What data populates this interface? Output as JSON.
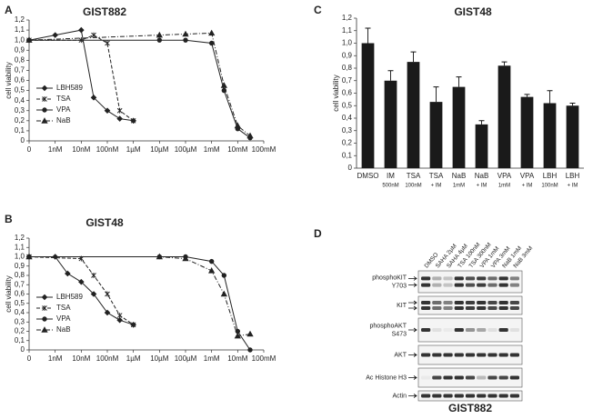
{
  "chart_data": [
    {
      "type": "line",
      "panel": "A",
      "title": "GIST882",
      "ylabel": "cell viability",
      "xlog": true,
      "xlim": [
        0,
        0.1
      ],
      "xticks": [
        {
          "value": 0,
          "label": "0"
        },
        {
          "value": 1e-09,
          "label": "1nM"
        },
        {
          "value": 1e-08,
          "label": "10nM"
        },
        {
          "value": 1e-07,
          "label": "100nM"
        },
        {
          "value": 1e-06,
          "label": "1µM"
        },
        {
          "value": 1e-05,
          "label": "10µM"
        },
        {
          "value": 0.0001,
          "label": "100µM"
        },
        {
          "value": 0.001,
          "label": "1mM"
        },
        {
          "value": 0.01,
          "label": "10mM"
        },
        {
          "value": 0.1,
          "label": "100mM"
        }
      ],
      "ylim": [
        0,
        1.2
      ],
      "yticks": [
        0,
        {
          "value": 0.1,
          "label": "0,1"
        },
        {
          "value": 0.2,
          "label": "0,2"
        },
        {
          "value": 0.3,
          "label": "0,3"
        },
        {
          "value": 0.4,
          "label": "0,4"
        },
        {
          "value": 0.5,
          "label": "0,5"
        },
        {
          "value": 0.6,
          "label": "0,6"
        },
        {
          "value": 0.7,
          "label": "0,7"
        },
        {
          "value": 0.8,
          "label": "0,8"
        },
        {
          "value": 0.9,
          "label": "0,9"
        },
        {
          "value": 1.0,
          "label": "1,0"
        },
        {
          "value": 1.1,
          "label": "1,1"
        },
        {
          "value": 1.2,
          "label": "1,2"
        }
      ],
      "legend": "lower left",
      "series": [
        {
          "name": "LBH589",
          "color": "#222222",
          "marker": "diamond",
          "linestyle": "solid",
          "x": [
            0,
            1e-09,
            1e-08,
            3e-08,
            1e-07,
            3e-07,
            1e-06
          ],
          "values": [
            1.0,
            1.05,
            1.1,
            0.43,
            0.3,
            0.22,
            0.2
          ]
        },
        {
          "name": "TSA",
          "color": "#222222",
          "marker": "star",
          "linestyle": "dashed",
          "x": [
            0,
            1e-08,
            3e-08,
            1e-07,
            3e-07,
            1e-06
          ],
          "values": [
            1.0,
            1.0,
            1.05,
            0.97,
            0.3,
            0.2
          ]
        },
        {
          "name": "VPA",
          "color": "#222222",
          "marker": "circle",
          "linestyle": "solid",
          "x": [
            0,
            1e-05,
            0.0001,
            0.001,
            0.003,
            0.01,
            0.03
          ],
          "values": [
            1.0,
            1.0,
            1.0,
            0.97,
            0.5,
            0.12,
            0.03
          ]
        },
        {
          "name": "NaB",
          "color": "#222222",
          "marker": "triangle",
          "linestyle": "dashdot",
          "x": [
            0,
            1e-05,
            0.0001,
            0.001,
            0.003,
            0.01,
            0.03
          ],
          "values": [
            1.0,
            1.05,
            1.06,
            1.07,
            0.55,
            0.15,
            0.05
          ]
        }
      ]
    },
    {
      "type": "line",
      "panel": "B",
      "title": "GIST48",
      "ylabel": "cell viability",
      "xlog": true,
      "xlim": [
        0,
        0.1
      ],
      "xticks": [
        {
          "value": 0,
          "label": "0"
        },
        {
          "value": 1e-09,
          "label": "1nM"
        },
        {
          "value": 1e-08,
          "label": "10nM"
        },
        {
          "value": 1e-07,
          "label": "100nM"
        },
        {
          "value": 1e-06,
          "label": "1µM"
        },
        {
          "value": 1e-05,
          "label": "10µM"
        },
        {
          "value": 0.0001,
          "label": "100µM"
        },
        {
          "value": 0.001,
          "label": "1mM"
        },
        {
          "value": 0.01,
          "label": "10mM"
        },
        {
          "value": 0.1,
          "label": "100mM"
        }
      ],
      "ylim": [
        0,
        1.2
      ],
      "yticks": [
        0,
        {
          "value": 0.1,
          "label": "0,1"
        },
        {
          "value": 0.2,
          "label": "0,2"
        },
        {
          "value": 0.3,
          "label": "0,3"
        },
        {
          "value": 0.4,
          "label": "0,4"
        },
        {
          "value": 0.5,
          "label": "0,5"
        },
        {
          "value": 0.6,
          "label": "0,6"
        },
        {
          "value": 0.7,
          "label": "0,7"
        },
        {
          "value": 0.8,
          "label": "0,8"
        },
        {
          "value": 0.9,
          "label": "0,9"
        },
        {
          "value": 1.0,
          "label": "1,0"
        },
        {
          "value": 1.1,
          "label": "1,1"
        },
        {
          "value": 1.2,
          "label": "1,2"
        }
      ],
      "legend": "lower left",
      "series": [
        {
          "name": "LBH589",
          "color": "#222222",
          "marker": "diamond",
          "linestyle": "solid",
          "x": [
            0,
            1e-09,
            3e-09,
            1e-08,
            3e-08,
            1e-07,
            3e-07,
            1e-06
          ],
          "values": [
            1.0,
            1.0,
            0.82,
            0.73,
            0.6,
            0.4,
            0.32,
            0.27
          ]
        },
        {
          "name": "TSA",
          "color": "#222222",
          "marker": "star",
          "linestyle": "dashed",
          "x": [
            0,
            1e-08,
            3e-08,
            1e-07,
            3e-07,
            1e-06
          ],
          "values": [
            1.0,
            0.98,
            0.8,
            0.6,
            0.37,
            0.27
          ]
        },
        {
          "name": "VPA",
          "color": "#222222",
          "marker": "circle",
          "linestyle": "solid",
          "x": [
            0,
            1e-05,
            0.0001,
            0.001,
            0.003,
            0.01,
            0.03
          ],
          "values": [
            1.0,
            1.0,
            1.0,
            0.95,
            0.8,
            0.2,
            0.0
          ]
        },
        {
          "name": "NaB",
          "color": "#222222",
          "marker": "triangle",
          "linestyle": "dashdot",
          "x": [
            0,
            1e-05,
            0.0001,
            0.001,
            0.003,
            0.01,
            0.03
          ],
          "values": [
            1.0,
            1.0,
            0.98,
            0.85,
            0.6,
            0.15,
            0.17
          ]
        }
      ]
    },
    {
      "type": "bar",
      "panel": "C",
      "title": "GIST48",
      "ylabel": "cell viability",
      "color": "#1a1a1a",
      "categories": [
        "DMSO",
        "IM",
        "TSA",
        "TSA",
        "NaB",
        "NaB",
        "VPA",
        "VPA",
        "LBH",
        "LBH"
      ],
      "sublabels": [
        null,
        "500nM",
        "100nM",
        "+ IM",
        "1mM",
        "+ IM",
        "1mM",
        "+ IM",
        "100nM",
        "+ IM"
      ],
      "values": [
        1.0,
        0.7,
        0.85,
        0.53,
        0.65,
        0.35,
        0.82,
        0.57,
        0.52,
        0.5
      ],
      "errors": [
        0.12,
        0.08,
        0.08,
        0.12,
        0.08,
        0.03,
        0.03,
        0.02,
        0.1,
        0.02
      ],
      "ylim": [
        0,
        1.2
      ],
      "yticks": [
        0,
        {
          "value": 0.1,
          "label": "0,1"
        },
        {
          "value": 0.2,
          "label": "0,2"
        },
        {
          "value": 0.3,
          "label": "0,3"
        },
        {
          "value": 0.4,
          "label": "0,4"
        },
        {
          "value": 0.5,
          "label": "0,5"
        },
        {
          "value": 0.6,
          "label": "0,6"
        },
        {
          "value": 0.7,
          "label": "0,7"
        },
        {
          "value": 0.8,
          "label": "0,8"
        },
        {
          "value": 0.9,
          "label": "0,9"
        },
        {
          "value": 1.0,
          "label": "1,0"
        },
        {
          "value": 1.1,
          "label": "1,1"
        },
        {
          "value": 1.2,
          "label": "1,2"
        }
      ]
    }
  ],
  "blot": {
    "panel": "D",
    "cell_line": "GIST882",
    "lanes": [
      "DMSO",
      "SAHA 2µM",
      "SAHA 4µM",
      "TSA 100nM",
      "TSA 300nM",
      "VPA 1mM",
      "VPA 3mM",
      "NaB 1mM",
      "NaB 3mM"
    ],
    "rows": [
      [
        "phosphoKIT",
        "Y703"
      ],
      [
        "KIT"
      ],
      [
        "phosphoAKT",
        "S473"
      ],
      [
        "AKT"
      ],
      [
        "Ac Histone H3"
      ],
      [
        "Actin"
      ]
    ]
  }
}
